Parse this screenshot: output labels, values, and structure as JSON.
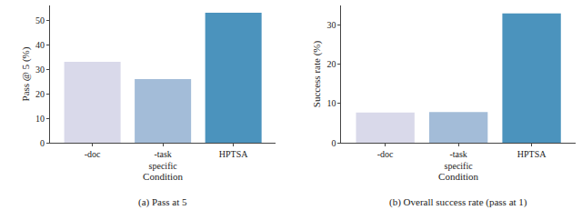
{
  "chart_data": [
    {
      "type": "bar",
      "title": "(a) Pass at 5",
      "x_label": "Condition",
      "y_label": "Pass @ 5 (%)",
      "categories": [
        "-doc",
        "-task specific",
        "HPTSA"
      ],
      "values": [
        33,
        26,
        53
      ],
      "colors": [
        "#d9d9ea",
        "#a3bcd8",
        "#4b93bd"
      ],
      "ylim": [
        0,
        56
      ],
      "yticks": [
        0,
        10,
        20,
        30,
        40,
        50
      ]
    },
    {
      "type": "bar",
      "title": "(b) Overall success rate (pass at 1)",
      "x_label": "Condition",
      "y_label": "Success rate (%)",
      "categories": [
        "-doc",
        "-task specific",
        "HPTSA"
      ],
      "values": [
        7.7,
        7.8,
        33
      ],
      "colors": [
        "#d9d9ea",
        "#a3bcd8",
        "#4b93bd"
      ],
      "ylim": [
        0,
        35
      ],
      "yticks": [
        0,
        10,
        20,
        30
      ]
    }
  ]
}
